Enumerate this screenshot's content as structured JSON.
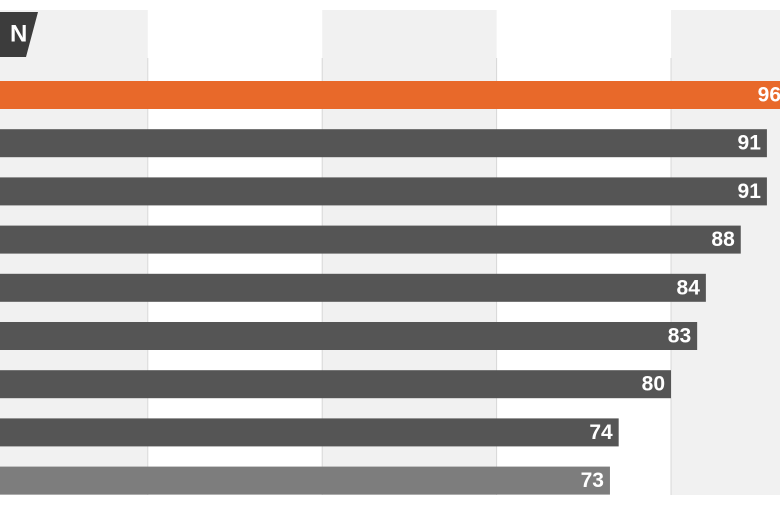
{
  "chart_data": {
    "type": "hbar",
    "tag": "N",
    "values": [
      96,
      91,
      91,
      88,
      84,
      83,
      80,
      74,
      73
    ],
    "colors": [
      "#e8692a",
      "#555555",
      "#555555",
      "#555555",
      "#555555",
      "#555555",
      "#555555",
      "#555555",
      "#7d7d7d"
    ],
    "xlim": [
      0,
      100
    ],
    "xticks": [
      20,
      40,
      60,
      80
    ],
    "grid": true
  }
}
